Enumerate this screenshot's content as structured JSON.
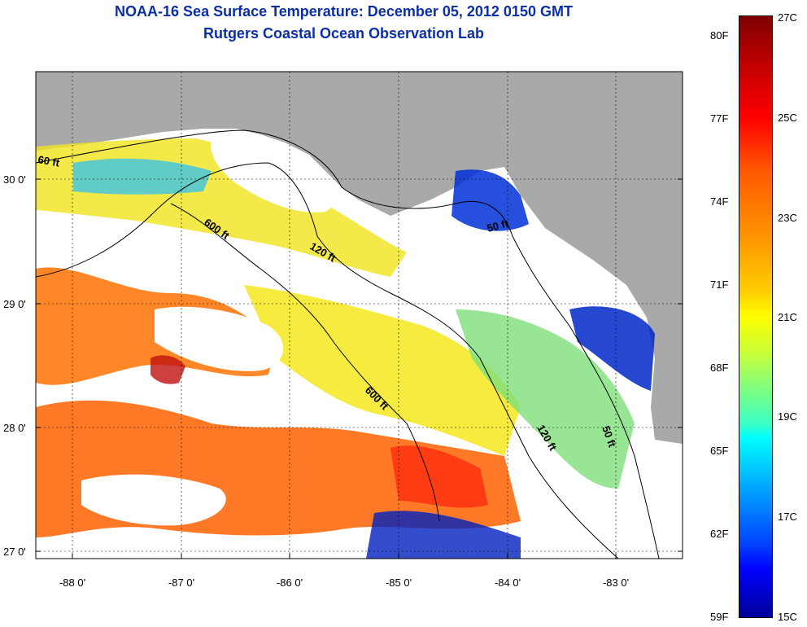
{
  "title": {
    "line1": "NOAA-16 Sea Surface Temperature:  December 05, 2012 0150 GMT",
    "line2": "Rutgers Coastal Ocean Observation Lab"
  },
  "map": {
    "lat_ticks": [
      {
        "label": "30 0'"
      },
      {
        "label": "29 0'"
      },
      {
        "label": "28 0'"
      },
      {
        "label": "27 0'"
      }
    ],
    "lon_ticks": [
      {
        "label": "-88 0'"
      },
      {
        "label": "-87 0'"
      },
      {
        "label": "-86 0'"
      },
      {
        "label": "-85 0'"
      },
      {
        "label": "-84 0'"
      },
      {
        "label": "-83 0'"
      }
    ],
    "contour_labels": [
      "60 ft",
      "600 ft",
      "120 ft",
      "50 ft",
      "600 ft",
      "120 ft",
      "50 ft"
    ],
    "colors": {
      "land": "#a9a9a9",
      "cloud": "#ffffff",
      "grid": "#000000"
    }
  },
  "colorbar": {
    "fahrenheit": [
      "80F",
      "77F",
      "74F",
      "71F",
      "68F",
      "65F",
      "62F",
      "59F"
    ],
    "celsius": [
      "27C",
      "25C",
      "23C",
      "21C",
      "19C",
      "17C",
      "15C"
    ],
    "colors": [
      "#7f0000",
      "#ff0000",
      "#ff9000",
      "#ffff00",
      "#00ffff",
      "#0000ff",
      "#00009a"
    ]
  }
}
